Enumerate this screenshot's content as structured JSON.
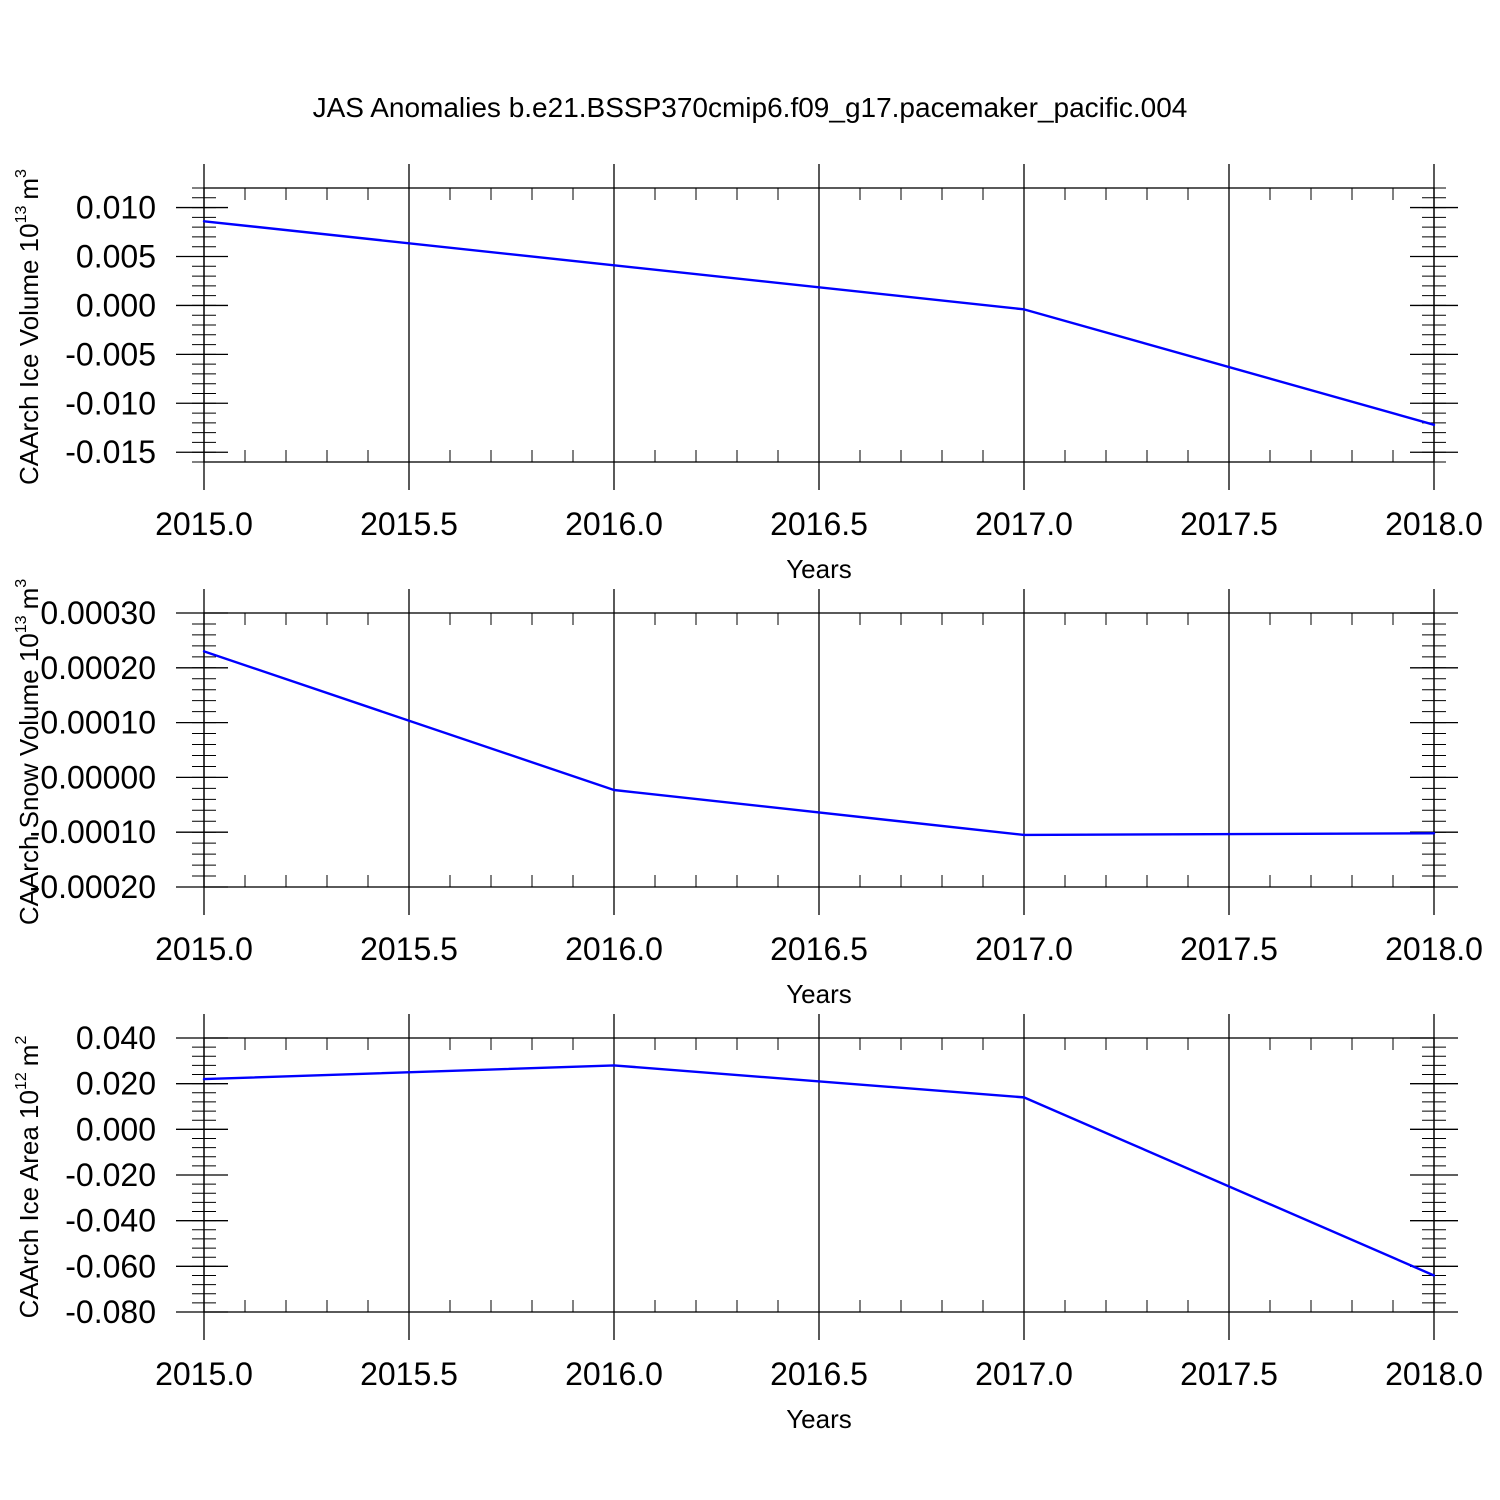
{
  "figure": {
    "title": "JAS Anomalies b.e21.BSSP370cmip6.f09_g17.pacemaker_pacific.004"
  },
  "chart_data": [
    {
      "type": "line",
      "title": "",
      "xlabel": "Years",
      "ylabel": {
        "prefix": "CAArch Ice Volume 10",
        "exponent": "13",
        "unit": "m",
        "unit_exponent": "3"
      },
      "x": [
        2015,
        2016,
        2017,
        2018
      ],
      "series": [
        {
          "values": [
            0.0086,
            0.0041,
            -0.0004,
            -0.0122
          ],
          "color": "#0000ff"
        }
      ],
      "xlim": [
        2015.0,
        2018.0
      ],
      "ylim": [
        -0.016,
        0.012
      ],
      "xticks": [
        2015.0,
        2015.5,
        2016.0,
        2016.5,
        2017.0,
        2017.5,
        2018.0
      ],
      "xtick_labels": [
        "2015.0",
        "2015.5",
        "2016.0",
        "2016.5",
        "2017.0",
        "2017.5",
        "2018.0"
      ],
      "yticks": [
        0.01,
        0.005,
        0.0,
        -0.005,
        -0.01,
        -0.015
      ],
      "ytick_labels": [
        "0.010",
        "0.005",
        "0.000",
        "-0.005",
        "-0.010",
        "-0.015"
      ],
      "grid": "vertical dashed"
    },
    {
      "type": "line",
      "title": "",
      "xlabel": "Years",
      "ylabel": {
        "prefix": "CAArch Snow Volume 10",
        "exponent": "13",
        "unit": "m",
        "unit_exponent": "3"
      },
      "x": [
        2015,
        2016,
        2017,
        2018
      ],
      "series": [
        {
          "values": [
            0.00023,
            -2.3e-05,
            -0.000105,
            -0.000102
          ],
          "color": "#0000ff"
        }
      ],
      "xlim": [
        2015.0,
        2018.0
      ],
      "ylim": [
        -0.0002,
        0.0003
      ],
      "xticks": [
        2015.0,
        2015.5,
        2016.0,
        2016.5,
        2017.0,
        2017.5,
        2018.0
      ],
      "xtick_labels": [
        "2015.0",
        "2015.5",
        "2016.0",
        "2016.5",
        "2017.0",
        "2017.5",
        "2018.0"
      ],
      "yticks": [
        0.0003,
        0.0002,
        0.0001,
        0.0,
        -0.0001,
        -0.0002
      ],
      "ytick_labels": [
        "0.00030",
        "0.00020",
        "0.00010",
        "0.00000",
        "-0.00010",
        "-0.00020"
      ],
      "grid": "vertical dashed"
    },
    {
      "type": "line",
      "title": "",
      "xlabel": "Years",
      "ylabel": {
        "prefix": "CAArch Ice Area 10",
        "exponent": "12",
        "unit": "m",
        "unit_exponent": "2"
      },
      "x": [
        2015,
        2016,
        2017,
        2018
      ],
      "series": [
        {
          "values": [
            0.022,
            0.028,
            0.014,
            -0.064
          ],
          "color": "#0000ff"
        }
      ],
      "xlim": [
        2015.0,
        2018.0
      ],
      "ylim": [
        -0.08,
        0.04
      ],
      "xticks": [
        2015.0,
        2015.5,
        2016.0,
        2016.5,
        2017.0,
        2017.5,
        2018.0
      ],
      "xtick_labels": [
        "2015.0",
        "2015.5",
        "2016.0",
        "2016.5",
        "2017.0",
        "2017.5",
        "2018.0"
      ],
      "yticks": [
        0.04,
        0.02,
        0.0,
        -0.02,
        -0.04,
        -0.06,
        -0.08
      ],
      "ytick_labels": [
        "0.040",
        "0.020",
        "0.000",
        "-0.020",
        "-0.040",
        "-0.060",
        "-0.080"
      ],
      "grid": "vertical dashed"
    }
  ]
}
